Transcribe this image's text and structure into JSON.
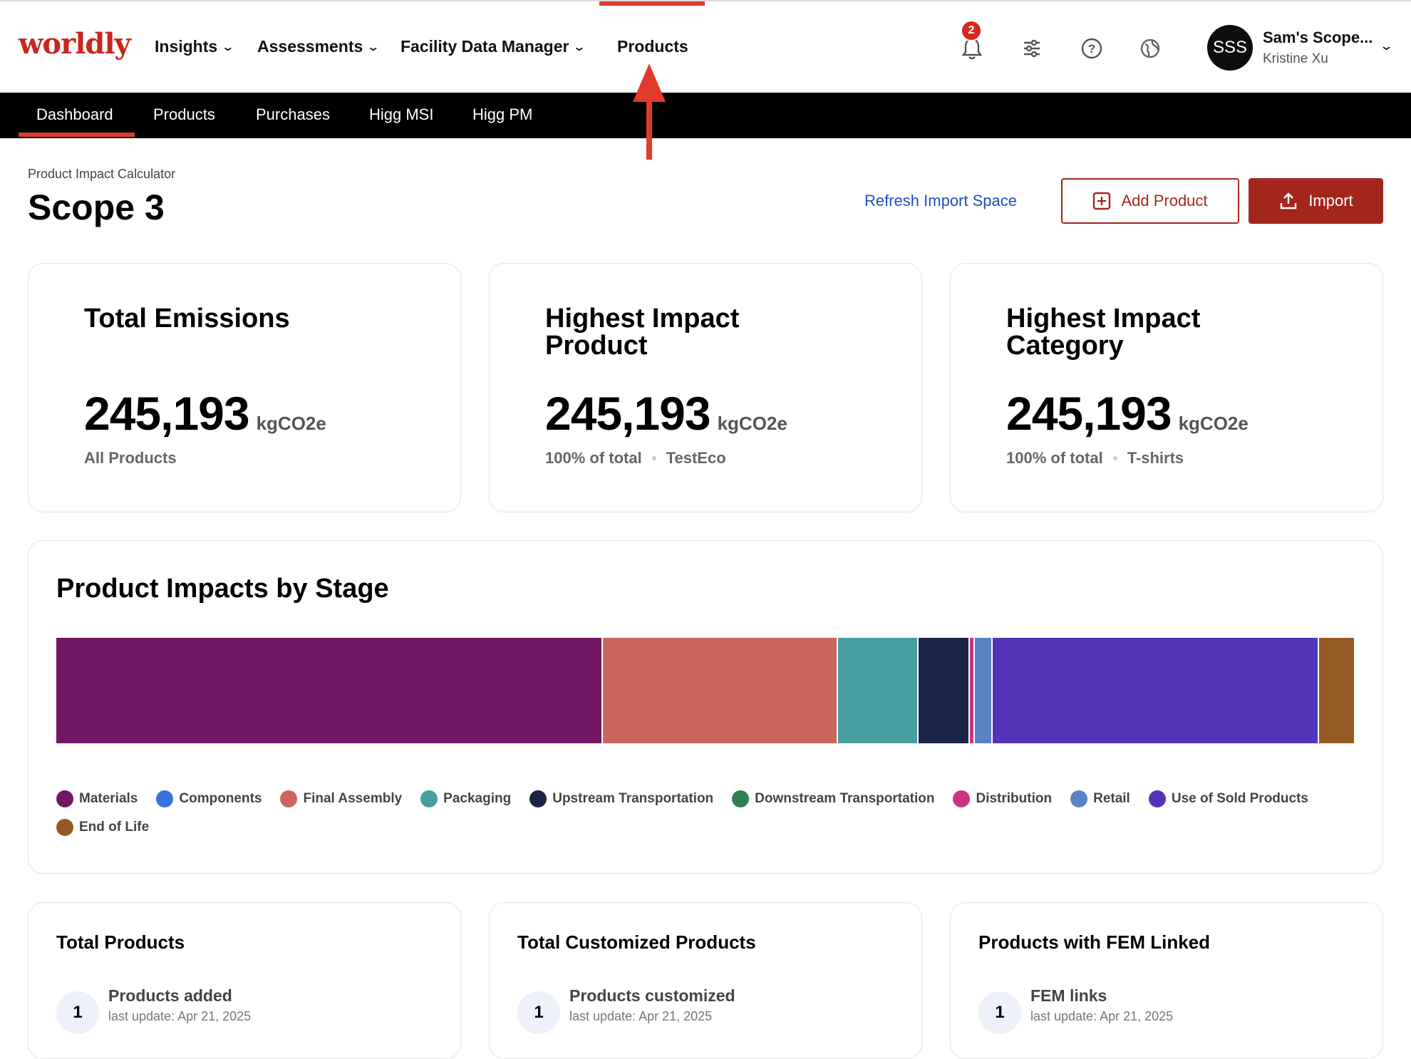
{
  "brand": {
    "logo_text": "worldly",
    "accent": "#e23a2c"
  },
  "topnav": {
    "items": [
      {
        "label": "Insights",
        "has_dropdown": true
      },
      {
        "label": "Assessments",
        "has_dropdown": true
      },
      {
        "label": "Facility Data Manager",
        "has_dropdown": true
      },
      {
        "label": "Products",
        "has_dropdown": false,
        "active": true
      }
    ],
    "notification_count": "2",
    "icons": [
      "bell-icon",
      "sliders-icon",
      "help-icon",
      "globe-icon"
    ],
    "user": {
      "initials": "SSS",
      "name": "Sam's Scope...",
      "subtitle": "Kristine Xu"
    }
  },
  "subnav": {
    "items": [
      {
        "label": "Dashboard",
        "active": true
      },
      {
        "label": "Products"
      },
      {
        "label": "Purchases"
      },
      {
        "label": "Higg MSI"
      },
      {
        "label": "Higg PM"
      }
    ]
  },
  "header": {
    "breadcrumb": "Product Impact Calculator",
    "title": "Scope 3",
    "refresh_label": "Refresh Import Space",
    "add_product_label": "Add Product",
    "import_label": "Import"
  },
  "stats": [
    {
      "title": "Total Emissions",
      "value": "245,193",
      "unit": "kgCO2e",
      "sub_primary": "All Products",
      "sub_secondary": ""
    },
    {
      "title": "Highest Impact Product",
      "value": "245,193",
      "unit": "kgCO2e",
      "sub_primary": "100% of total",
      "sub_secondary": "TestEco"
    },
    {
      "title": "Highest Impact Category",
      "value": "245,193",
      "unit": "kgCO2e",
      "sub_primary": "100% of total",
      "sub_secondary": "T-shirts"
    }
  ],
  "impact_chart": {
    "title": "Product Impacts by Stage"
  },
  "chart_data": {
    "type": "bar",
    "orientation": "horizontal-stacked-100",
    "title": "Product Impacts by Stage",
    "unit": "share of total",
    "series": [
      {
        "name": "Materials",
        "value": 0.421,
        "color": "#731765"
      },
      {
        "name": "Components",
        "value": 0.0,
        "color": "#3473e0"
      },
      {
        "name": "Final Assembly",
        "value": 0.181,
        "color": "#cc665c"
      },
      {
        "name": "Packaging",
        "value": 0.062,
        "color": "#469e9e"
      },
      {
        "name": "Upstream Transportation",
        "value": 0.039,
        "color": "#192547"
      },
      {
        "name": "Downstream Transportation",
        "value": 0.0,
        "color": "#318050"
      },
      {
        "name": "Distribution",
        "value": 0.004,
        "color": "#cc3480"
      },
      {
        "name": "Retail",
        "value": 0.014,
        "color": "#5a82c4"
      },
      {
        "name": "Use of Sold Products",
        "value": 0.251,
        "color": "#5533b8"
      },
      {
        "name": "End of Life",
        "value": 0.028,
        "color": "#965a24"
      }
    ],
    "legend": "bottom"
  },
  "summary_cards": [
    {
      "title": "Total Products",
      "count": "1",
      "label": "Products added",
      "update": "last update: Apr 21, 2025"
    },
    {
      "title": "Total Customized Products",
      "count": "1",
      "label": "Products customized",
      "update": "last update: Apr 21, 2025"
    },
    {
      "title": "Products with FEM Linked",
      "count": "1",
      "label": "FEM links",
      "update": "last update: Apr 21, 2025"
    }
  ]
}
